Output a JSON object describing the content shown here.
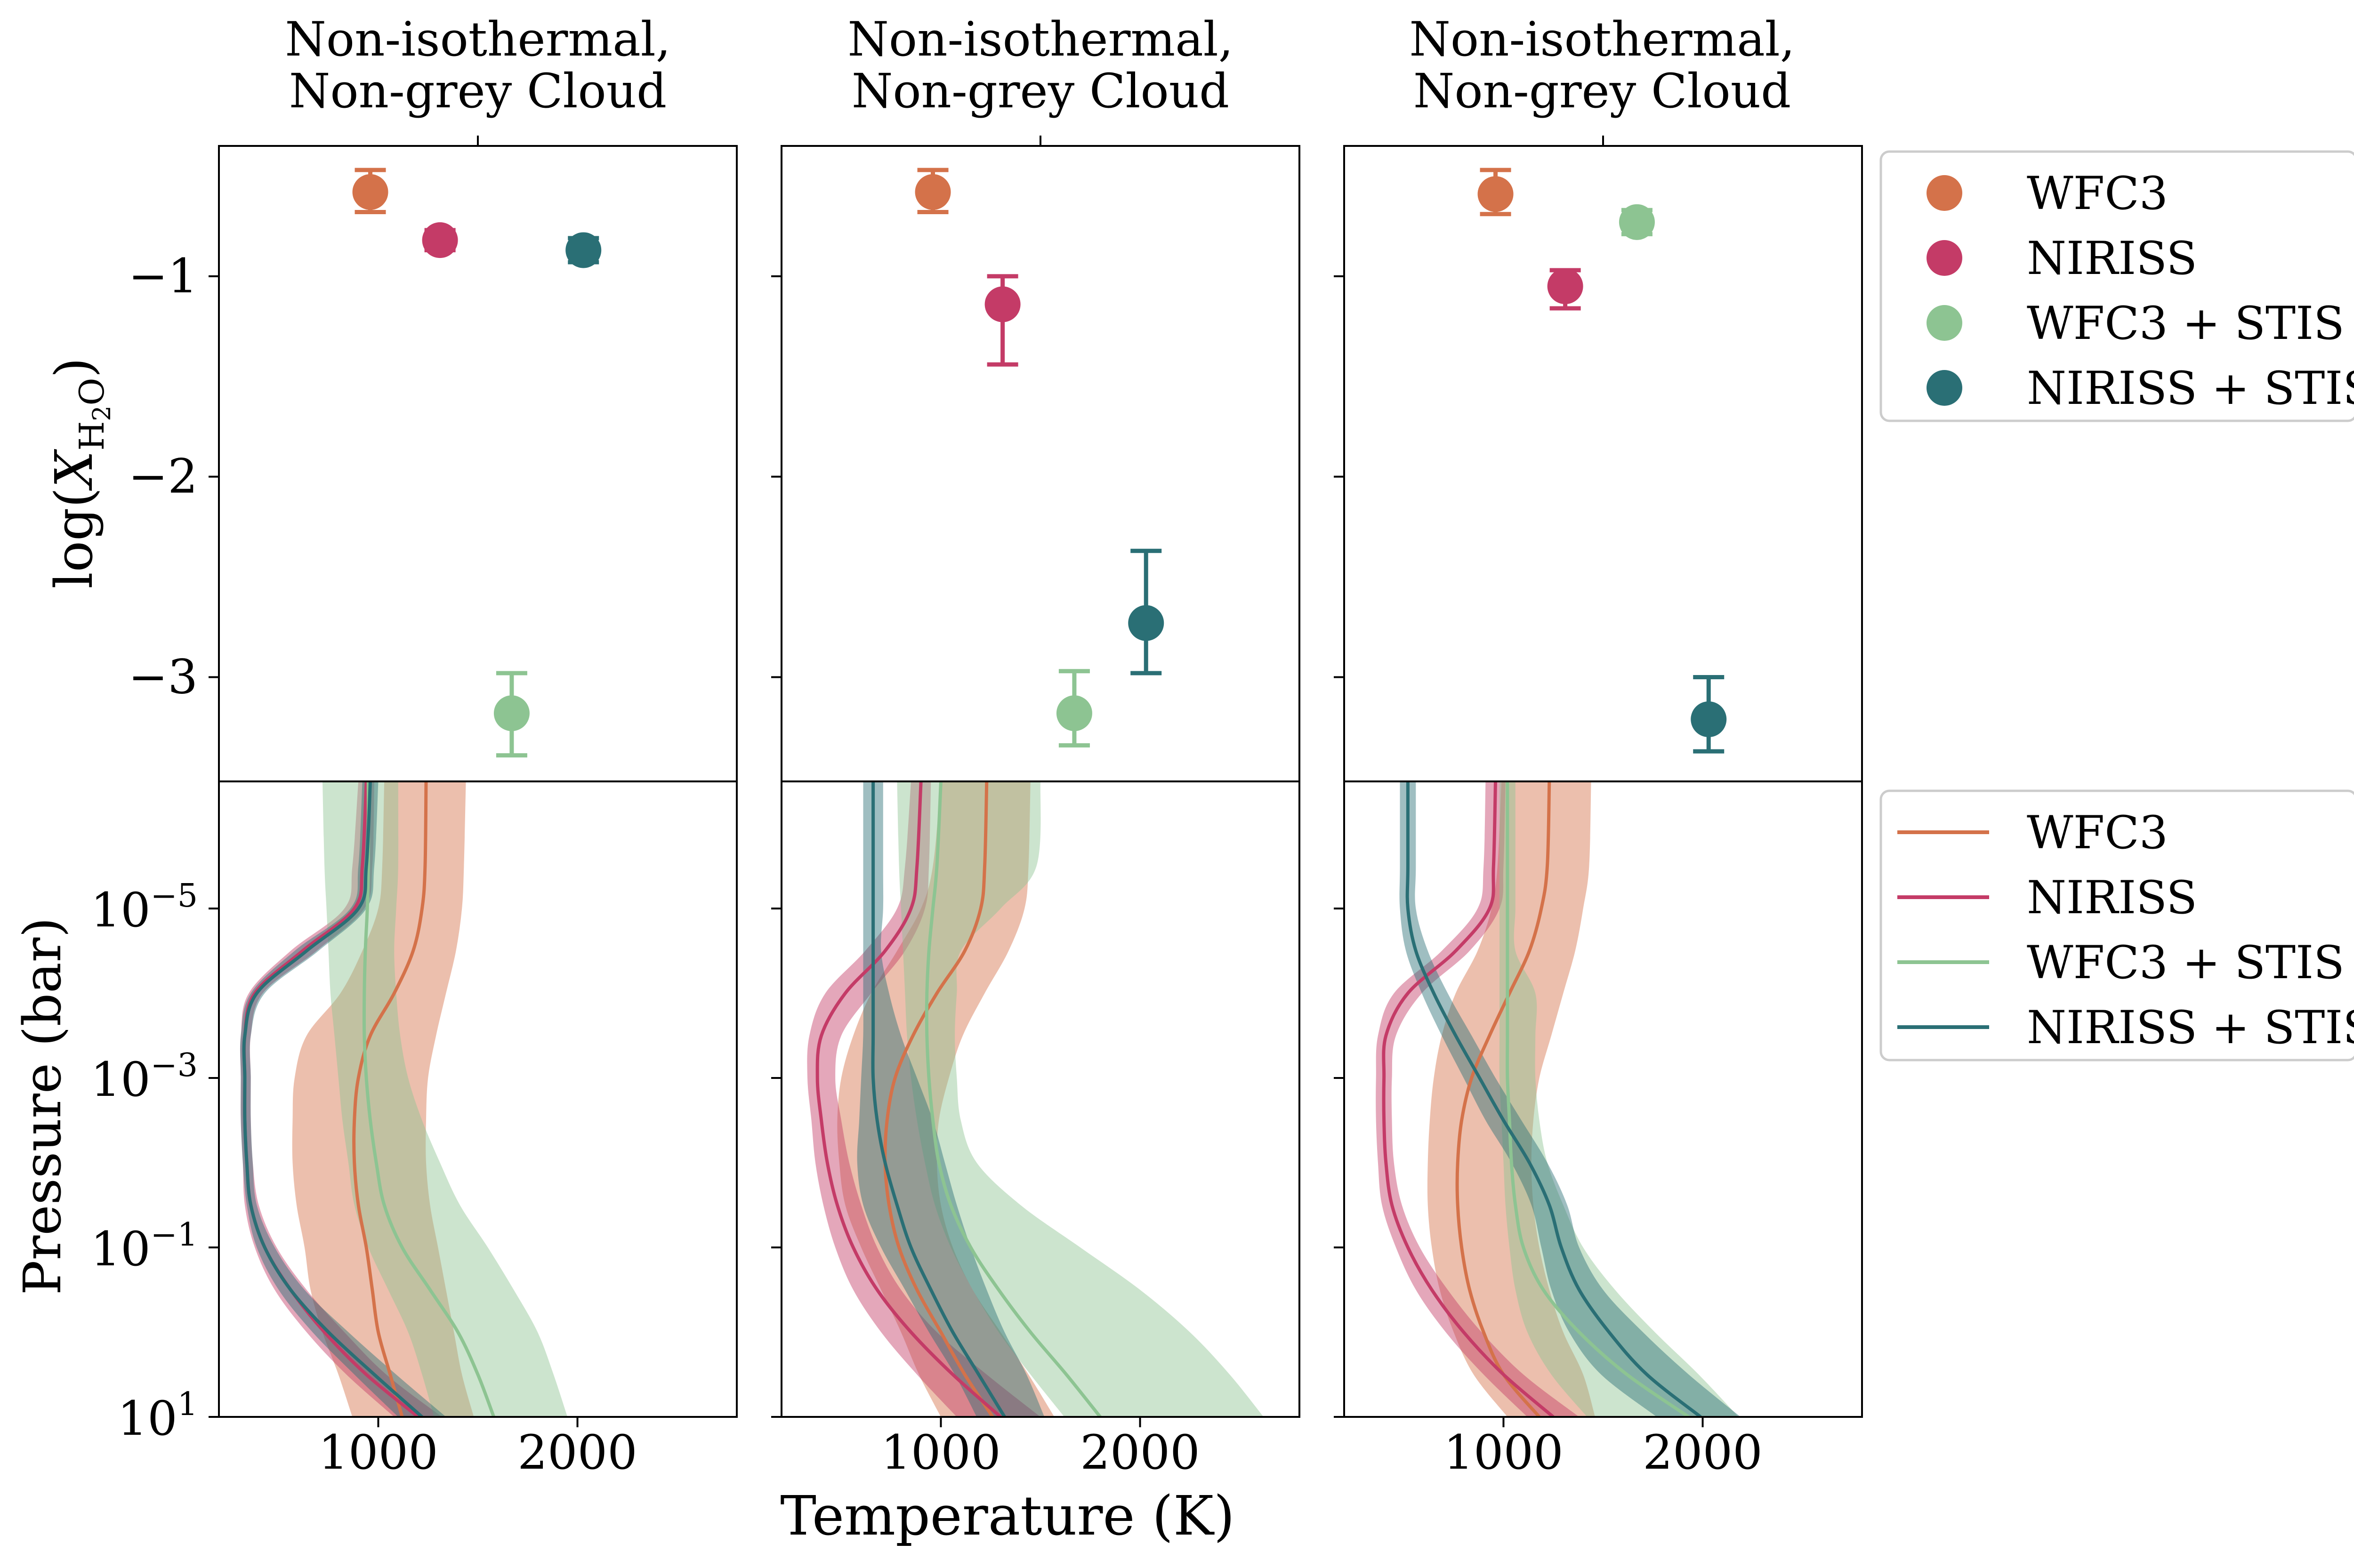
{
  "figure": {
    "xlabel": "Temperature (K)",
    "colors": {
      "WFC3": "#D4724A",
      "NIRISS": "#C43B67",
      "WFC3 + STIS": "#8DC492",
      "NIRISS + STIS": "#2A6F75"
    }
  },
  "chart_data": [
    {
      "panel": 1,
      "type": "scatter",
      "title": [
        "Non-isothermal,",
        "Non-grey Cloud"
      ],
      "ylabel": "log(X_H2O)",
      "ylim": [
        -3.52,
        -0.35
      ],
      "yticks": [
        -1,
        -2,
        -3
      ],
      "points": [
        {
          "series": "WFC3",
          "x": 960,
          "y": -0.58,
          "yerr": [
            0.1,
            0.11
          ]
        },
        {
          "series": "NIRISS",
          "x": 1310,
          "y": -0.82,
          "yerr": [
            0.05,
            0.05
          ]
        },
        {
          "series": "WFC3 + STIS",
          "x": 1670,
          "y": -3.18,
          "yerr": [
            0.21,
            0.2
          ]
        },
        {
          "series": "NIRISS + STIS",
          "x": 2030,
          "y": -0.87,
          "yerr": [
            0.06,
            0.06
          ]
        }
      ]
    },
    {
      "panel": 2,
      "type": "scatter",
      "title": [
        "Non-isothermal,",
        "Non-grey Cloud"
      ],
      "ylim": [
        -3.52,
        -0.35
      ],
      "yticks": [
        -1,
        -2,
        -3
      ],
      "points": [
        {
          "series": "WFC3",
          "x": 960,
          "y": -0.58,
          "yerr": [
            0.1,
            0.11
          ]
        },
        {
          "series": "NIRISS",
          "x": 1310,
          "y": -1.14,
          "yerr": [
            0.3,
            0.14
          ]
        },
        {
          "series": "WFC3 + STIS",
          "x": 1670,
          "y": -3.18,
          "yerr": [
            0.16,
            0.21
          ]
        },
        {
          "series": "NIRISS + STIS",
          "x": 2030,
          "y": -2.73,
          "yerr": [
            0.25,
            0.36
          ]
        }
      ]
    },
    {
      "panel": 3,
      "type": "scatter",
      "title": [
        "Non-isothermal,",
        "Non-grey Cloud"
      ],
      "ylim": [
        -3.52,
        -0.35
      ],
      "yticks": [
        -1,
        -2,
        -3
      ],
      "points": [
        {
          "series": "WFC3",
          "x": 960,
          "y": -0.59,
          "yerr": [
            0.1,
            0.12
          ]
        },
        {
          "series": "NIRISS",
          "x": 1310,
          "y": -1.05,
          "yerr": [
            0.11,
            0.08
          ]
        },
        {
          "series": "WFC3 + STIS",
          "x": 1670,
          "y": -0.73,
          "yerr": [
            0.06,
            0.06
          ]
        },
        {
          "series": "NIRISS + STIS",
          "x": 2030,
          "y": -3.21,
          "yerr": [
            0.16,
            0.21
          ]
        }
      ]
    },
    {
      "panel": 4,
      "type": "line",
      "ylabel": "Pressure (bar)",
      "yscale": "log",
      "yinverted": true,
      "ylim_log10": [
        1,
        -6.5
      ],
      "yticks_log10": [
        -5,
        -3,
        -1,
        1
      ],
      "xlim": [
        200,
        2800
      ],
      "xticks": [
        1000,
        2000
      ],
      "logP": [
        -6.5,
        -5.5,
        -5,
        -4.5,
        -4,
        -3.5,
        -3,
        -2.5,
        -2,
        -1.5,
        -1,
        -0.5,
        0,
        0.5,
        1
      ],
      "series": [
        {
          "name": "WFC3",
          "T": [
            1240,
            1235,
            1220,
            1175,
            1080,
            960,
            900,
            880,
            880,
            900,
            940,
            970,
            1000,
            1060,
            1120
          ],
          "lo": [
            1030,
            1020,
            1000,
            920,
            810,
            640,
            580,
            570,
            570,
            590,
            630,
            660,
            720,
            800,
            870
          ],
          "hi": [
            1440,
            1430,
            1420,
            1390,
            1340,
            1290,
            1250,
            1240,
            1240,
            1260,
            1300,
            1340,
            1380,
            1420,
            1480
          ]
        },
        {
          "name": "NIRISS",
          "T": [
            940,
            920,
            880,
            620,
            380,
            330,
            330,
            330,
            340,
            360,
            430,
            560,
            730,
            940,
            1200
          ],
          "lo": [
            900,
            870,
            830,
            560,
            350,
            310,
            310,
            310,
            320,
            330,
            380,
            480,
            640,
            840,
            1080
          ],
          "hi": [
            980,
            970,
            930,
            690,
            420,
            360,
            360,
            360,
            370,
            400,
            490,
            640,
            830,
            1040,
            1320
          ]
        },
        {
          "name": "WFC3 + STIS",
          "T": [
            950,
            950,
            945,
            935,
            930,
            930,
            940,
            960,
            990,
            1030,
            1120,
            1260,
            1400,
            1500,
            1580
          ],
          "lo": [
            720,
            730,
            740,
            750,
            760,
            780,
            800,
            820,
            850,
            880,
            950,
            1050,
            1150,
            1220,
            1280
          ],
          "hi": [
            1100,
            1100,
            1090,
            1080,
            1090,
            1110,
            1150,
            1220,
            1310,
            1410,
            1550,
            1680,
            1800,
            1880,
            1950
          ]
        },
        {
          "name": "NIRISS + STIS",
          "T": [
            960,
            940,
            900,
            640,
            390,
            330,
            330,
            330,
            340,
            360,
            430,
            560,
            750,
            980,
            1220
          ],
          "lo": [
            920,
            900,
            860,
            580,
            360,
            310,
            310,
            310,
            320,
            340,
            390,
            500,
            670,
            880,
            1100
          ],
          "hi": [
            1000,
            980,
            940,
            700,
            430,
            360,
            360,
            360,
            370,
            390,
            480,
            630,
            850,
            1090,
            1340
          ]
        }
      ]
    },
    {
      "panel": 5,
      "type": "line",
      "yscale": "log",
      "yinverted": true,
      "ylim_log10": [
        1,
        -6.5
      ],
      "yticks_log10": [
        -5,
        -3,
        -1,
        1
      ],
      "xlim": [
        200,
        2800
      ],
      "xticks": [
        1000,
        2000
      ],
      "logP": [
        -6.5,
        -5.5,
        -5,
        -4.5,
        -4,
        -3.5,
        -3,
        -2.5,
        -2,
        -1.5,
        -1,
        -0.5,
        0,
        0.5,
        1
      ],
      "series": [
        {
          "name": "WFC3",
          "T": [
            1230,
            1220,
            1200,
            1120,
            980,
            860,
            770,
            730,
            720,
            740,
            790,
            880,
            1000,
            1120,
            1260
          ],
          "lo": [
            1000,
            960,
            900,
            780,
            650,
            560,
            500,
            480,
            490,
            520,
            600,
            700,
            800,
            890,
            1000
          ],
          "hi": [
            1450,
            1440,
            1420,
            1340,
            1220,
            1110,
            1040,
            990,
            980,
            1000,
            1060,
            1160,
            1300,
            1440,
            1570
          ]
        },
        {
          "name": "NIRISS",
          "T": [
            900,
            880,
            850,
            720,
            520,
            400,
            380,
            400,
            430,
            480,
            560,
            680,
            850,
            1060,
            1300
          ],
          "lo": [
            850,
            820,
            780,
            620,
            420,
            340,
            330,
            350,
            370,
            410,
            470,
            560,
            700,
            880,
            1080
          ],
          "hi": [
            950,
            940,
            920,
            820,
            650,
            500,
            470,
            500,
            540,
            600,
            680,
            800,
            980,
            1230,
            1500
          ]
        },
        {
          "name": "WFC3 + STIS",
          "T": [
            1000,
            980,
            960,
            940,
            930,
            930,
            940,
            960,
            990,
            1050,
            1150,
            1290,
            1450,
            1630,
            1800
          ],
          "lo": [
            780,
            790,
            800,
            810,
            820,
            830,
            850,
            880,
            920,
            970,
            1050,
            1160,
            1290,
            1450,
            1620
          ],
          "hi": [
            1500,
            1480,
            1300,
            1100,
            1080,
            1070,
            1080,
            1100,
            1180,
            1400,
            1700,
            2000,
            2250,
            2450,
            2620
          ]
        },
        {
          "name": "NIRISS + STIS",
          "T": [
            660,
            660,
            660,
            660,
            660,
            660,
            660,
            680,
            720,
            780,
            850,
            950,
            1060,
            1190,
            1320
          ],
          "lo": [
            610,
            610,
            610,
            610,
            610,
            610,
            600,
            590,
            580,
            610,
            700,
            820,
            940,
            1070,
            1180
          ],
          "hi": [
            710,
            710,
            710,
            700,
            740,
            800,
            880,
            960,
            1020,
            1080,
            1150,
            1230,
            1320,
            1430,
            1520
          ]
        }
      ]
    },
    {
      "panel": 6,
      "type": "line",
      "yscale": "log",
      "yinverted": true,
      "ylim_log10": [
        1,
        -6.5
      ],
      "yticks_log10": [
        -5,
        -3,
        -1,
        1
      ],
      "xlim": [
        200,
        2800
      ],
      "xticks": [
        1000,
        2000
      ],
      "logP": [
        -6.5,
        -5.5,
        -5,
        -4.5,
        -4,
        -3.5,
        -3,
        -2.5,
        -2,
        -1.5,
        -1,
        -0.5,
        0,
        0.5,
        1
      ],
      "series": [
        {
          "name": "WFC3",
          "T": [
            1230,
            1220,
            1190,
            1130,
            1030,
            930,
            840,
            790,
            770,
            770,
            790,
            830,
            900,
            1000,
            1180
          ],
          "lo": [
            990,
            970,
            940,
            870,
            760,
            690,
            650,
            630,
            620,
            620,
            640,
            680,
            750,
            850,
            1020
          ],
          "hi": [
            1440,
            1430,
            1400,
            1360,
            1300,
            1240,
            1180,
            1150,
            1140,
            1150,
            1180,
            1230,
            1300,
            1400,
            1460
          ]
        },
        {
          "name": "NIRISS",
          "T": [
            960,
            950,
            930,
            760,
            520,
            410,
            400,
            400,
            410,
            440,
            520,
            640,
            800,
            1000,
            1250
          ],
          "lo": [
            910,
            900,
            870,
            690,
            450,
            370,
            360,
            360,
            370,
            390,
            460,
            560,
            710,
            900,
            1120
          ],
          "hi": [
            1010,
            1000,
            980,
            830,
            590,
            460,
            440,
            440,
            450,
            490,
            580,
            720,
            890,
            1100,
            1380
          ]
        },
        {
          "name": "WFC3 + STIS",
          "T": [
            1020,
            1020,
            1020,
            1020,
            1020,
            1020,
            1020,
            1030,
            1040,
            1060,
            1100,
            1200,
            1380,
            1620,
            1930
          ],
          "lo": [
            980,
            980,
            980,
            980,
            980,
            980,
            980,
            990,
            1000,
            1010,
            1030,
            1060,
            1120,
            1240,
            1420
          ],
          "hi": [
            1060,
            1060,
            1060,
            1060,
            1160,
            1160,
            1160,
            1180,
            1220,
            1300,
            1400,
            1560,
            1760,
            1980,
            2180
          ]
        },
        {
          "name": "NIRISS + STIS",
          "T": [
            520,
            520,
            520,
            560,
            650,
            760,
            880,
            1000,
            1130,
            1230,
            1290,
            1380,
            1530,
            1720,
            1990
          ],
          "lo": [
            480,
            480,
            480,
            510,
            590,
            690,
            800,
            910,
            1040,
            1140,
            1190,
            1240,
            1330,
            1490,
            1770
          ],
          "hi": [
            560,
            560,
            560,
            620,
            720,
            840,
            960,
            1090,
            1220,
            1320,
            1380,
            1500,
            1700,
            1930,
            2190
          ]
        }
      ]
    }
  ],
  "legend_top": {
    "placement": "right of top row",
    "items": [
      "WFC3",
      "NIRISS",
      "WFC3 + STIS",
      "NIRISS + STIS"
    ]
  },
  "legend_bottom": {
    "placement": "right of bottom row",
    "items": [
      "WFC3",
      "NIRISS",
      "WFC3 + STIS",
      "NIRISS + STIS"
    ]
  }
}
